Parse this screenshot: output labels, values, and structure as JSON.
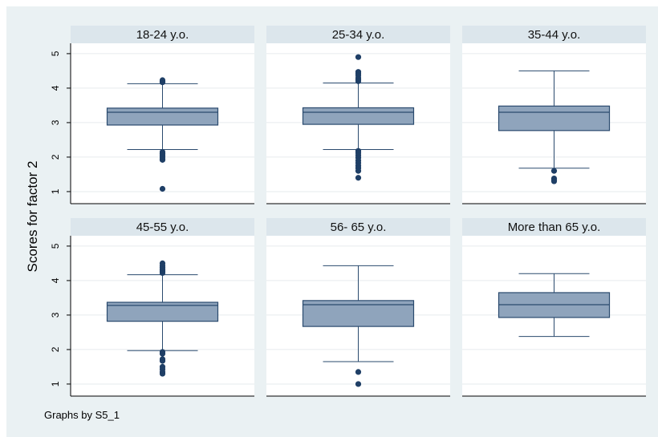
{
  "chart_data": {
    "type": "box",
    "ylabel": "Scores for factor 2",
    "footnote": "Graphs by S5_1",
    "y_ticks": [
      1,
      2,
      3,
      4,
      5
    ],
    "ylim": [
      0.65,
      5.3
    ],
    "grid": true,
    "colors": {
      "box_fill": "#8fa4bc",
      "box_edge": "#2a4a6e",
      "outlier": "#1f3f66",
      "panel_header": "#dce6ec",
      "outer_bg": "#eaf1f3",
      "grid": "#e6ebee"
    },
    "panels": [
      {
        "title": "18-24 y.o.",
        "whisker_low": 2.22,
        "q1": 2.93,
        "median": 3.3,
        "q3": 3.42,
        "whisker_high": 4.13,
        "outliers": [
          4.17,
          4.2,
          4.23,
          2.15,
          2.1,
          2.05,
          2.0,
          1.95,
          1.92,
          1.08
        ]
      },
      {
        "title": "25-34 y.o.",
        "whisker_low": 2.22,
        "q1": 2.95,
        "median": 3.3,
        "q3": 3.43,
        "whisker_high": 4.15,
        "outliers": [
          4.9,
          4.47,
          4.42,
          4.37,
          4.3,
          4.25,
          4.2,
          2.18,
          2.12,
          2.05,
          1.98,
          1.9,
          1.83,
          1.75,
          1.68,
          1.6,
          1.4
        ]
      },
      {
        "title": "35-44 y.o.",
        "whisker_low": 1.68,
        "q1": 2.77,
        "median": 3.3,
        "q3": 3.48,
        "whisker_high": 4.5,
        "outliers": [
          1.6,
          1.38,
          1.33,
          1.3
        ]
      },
      {
        "title": "45-55  y.o.",
        "whisker_low": 1.97,
        "q1": 2.82,
        "median": 3.28,
        "q3": 3.37,
        "whisker_high": 4.17,
        "outliers": [
          4.5,
          4.43,
          4.38,
          4.32,
          4.27,
          4.22,
          1.93,
          1.88,
          1.72,
          1.67,
          1.5,
          1.43,
          1.35,
          1.3
        ]
      },
      {
        "title": "56- 65  y.o.",
        "whisker_low": 1.65,
        "q1": 2.67,
        "median": 3.3,
        "q3": 3.42,
        "whisker_high": 4.43,
        "outliers": [
          1.35,
          1.0
        ]
      },
      {
        "title": "More than 65 y.o.",
        "whisker_low": 2.38,
        "q1": 2.93,
        "median": 3.3,
        "q3": 3.65,
        "whisker_high": 4.2,
        "outliers": []
      }
    ]
  }
}
